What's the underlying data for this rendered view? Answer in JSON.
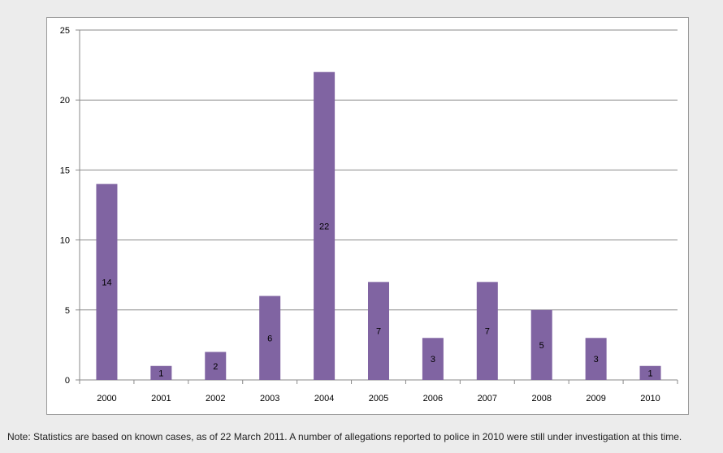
{
  "chart_data": {
    "type": "bar",
    "categories": [
      "2000",
      "2001",
      "2002",
      "2003",
      "2004",
      "2005",
      "2006",
      "2007",
      "2008",
      "2009",
      "2010"
    ],
    "values": [
      14,
      1,
      2,
      6,
      22,
      7,
      3,
      7,
      5,
      3,
      1
    ],
    "ylim": [
      0,
      25
    ],
    "yticks": [
      0,
      5,
      10,
      15,
      20,
      25
    ],
    "grid": true,
    "data_labels": true,
    "bar_color": "#8064a2",
    "title": "",
    "xlabel": "",
    "ylabel": ""
  },
  "note": "Note: Statistics are based on known cases, as of 22 March 2011. A number of allegations reported to police in 2010 were still under investigation at this time."
}
